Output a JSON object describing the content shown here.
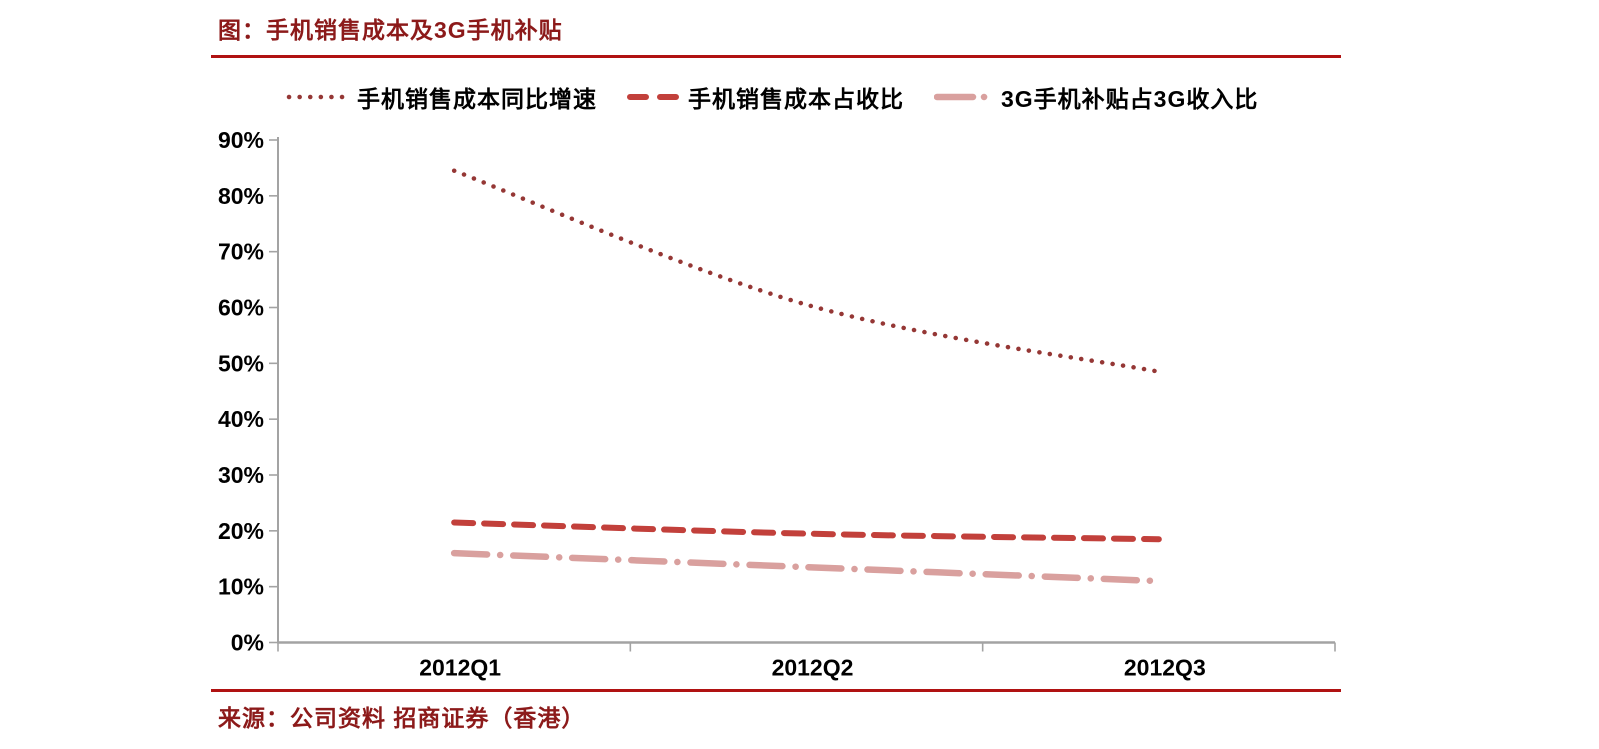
{
  "title": "图：手机销售成本及3G手机补贴",
  "source": "来源：公司资料 招商证券（香港）",
  "colors": {
    "title_text": "#8C1A1A",
    "rule": "#B01212",
    "axis": "#A3A3A3",
    "tick_label": "#000000"
  },
  "chart_data": {
    "type": "line",
    "categories": [
      "2012Q1",
      "2012Q2",
      "2012Q3"
    ],
    "series": [
      {
        "name": "手机销售成本同比增速",
        "values": [
          84.5,
          60.5,
          48.5
        ],
        "color": "#953735",
        "style": "dotted"
      },
      {
        "name": "手机销售成本占收比",
        "values": [
          21.5,
          19.5,
          18.5
        ],
        "color": "#C2403B",
        "style": "dashed"
      },
      {
        "name": "3G手机补贴占3G收入比",
        "values": [
          16,
          13.5,
          11
        ],
        "color": "#D9A09E",
        "style": "dash-dot"
      }
    ],
    "ylim": [
      0,
      90
    ],
    "ytick_step": 10,
    "ytick_suffix": "%",
    "legend_position": "top",
    "grid": false
  }
}
